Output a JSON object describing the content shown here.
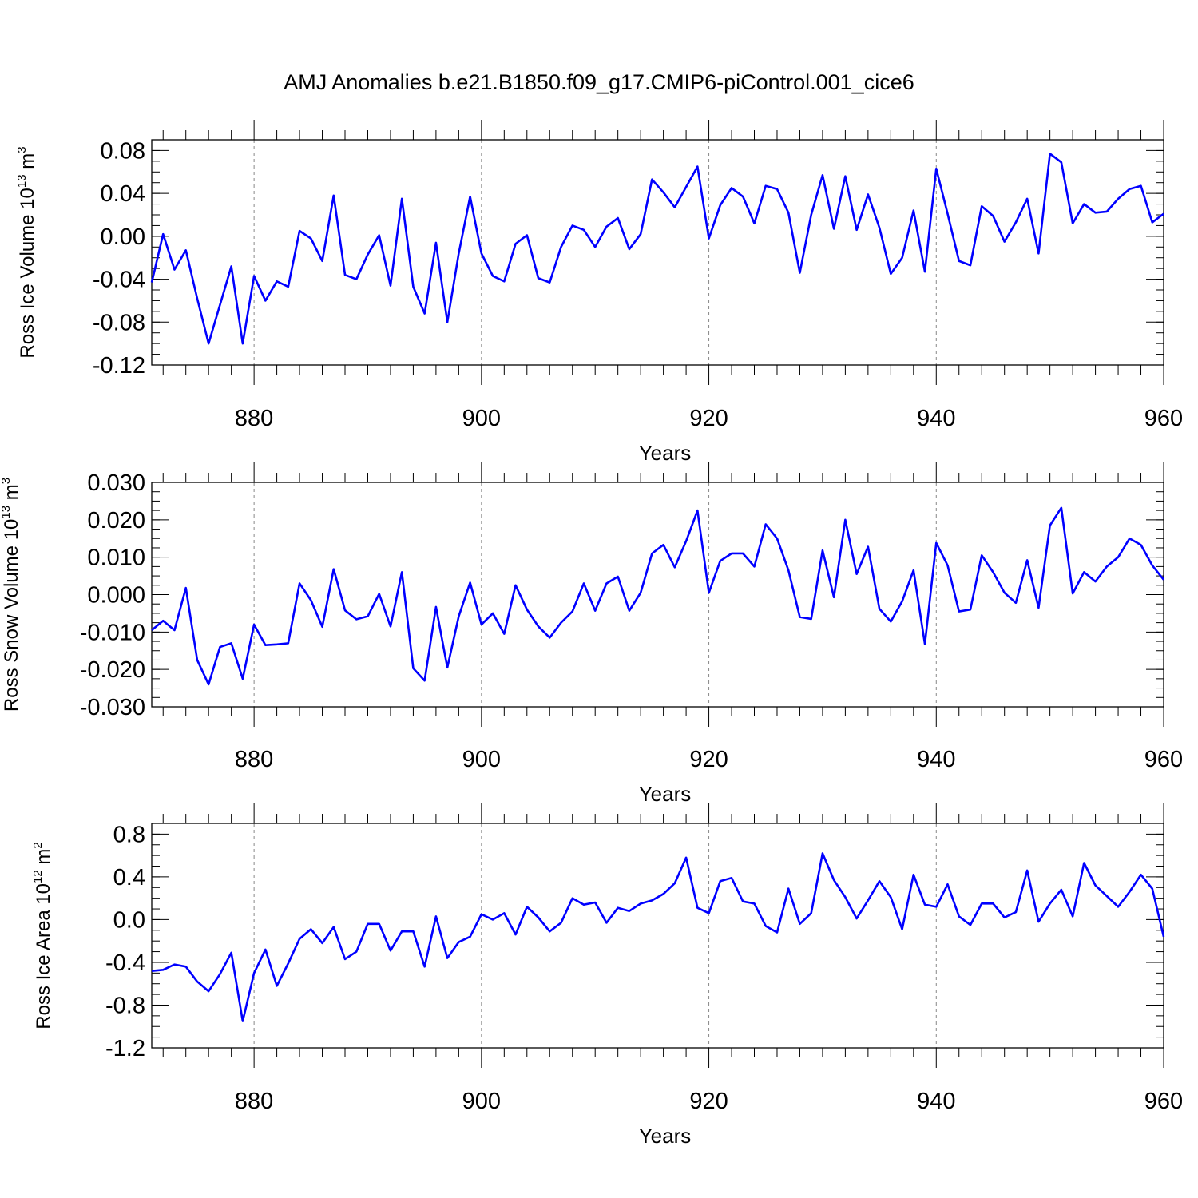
{
  "title": "AMJ Anomalies b.e21.B1850.f09_g17.CMIP6-piControl.001_cice6",
  "colors": {
    "series": "#0000ff",
    "axis": "#000000",
    "grid": "#888888"
  },
  "chart_data": [
    {
      "type": "line",
      "ylabel": {
        "base": "Ross Ice Volume 10",
        "exp": "13",
        "unit": " m",
        "unit_exp": "3"
      },
      "xlabel": "Years",
      "xlim": [
        871,
        960
      ],
      "ylim": [
        -0.12,
        0.09
      ],
      "grid": "vertical-dashed",
      "xticks": [
        880,
        900,
        920,
        940,
        960
      ],
      "xtick_labels": [
        "880",
        "900",
        "920",
        "940",
        "960"
      ],
      "yticks": [
        -0.12,
        -0.08,
        -0.04,
        0.0,
        0.04,
        0.08
      ],
      "ytick_labels": [
        "-0.12",
        "-0.08",
        "-0.04",
        "0.00",
        "0.04",
        "0.08"
      ],
      "yminor_step": 0.01,
      "x_start": 871,
      "values": [
        -0.043,
        0.002,
        -0.031,
        -0.013,
        -0.058,
        -0.1,
        -0.064,
        -0.028,
        -0.1,
        -0.037,
        -0.06,
        -0.042,
        -0.047,
        0.005,
        -0.002,
        -0.023,
        0.038,
        -0.036,
        -0.04,
        -0.017,
        0.001,
        -0.046,
        0.035,
        -0.047,
        -0.072,
        -0.006,
        -0.08,
        -0.016,
        0.037,
        -0.016,
        -0.037,
        -0.042,
        -0.007,
        0.001,
        -0.039,
        -0.043,
        -0.01,
        0.01,
        0.006,
        -0.01,
        0.009,
        0.017,
        -0.012,
        0.002,
        0.053,
        0.041,
        0.027,
        0.046,
        0.065,
        -0.002,
        0.029,
        0.045,
        0.037,
        0.012,
        0.047,
        0.044,
        0.022,
        -0.034,
        0.02,
        0.057,
        0.007,
        0.056,
        0.006,
        0.039,
        0.008,
        -0.035,
        -0.02,
        0.024,
        -0.033,
        0.063,
        0.021,
        -0.023,
        -0.027,
        0.028,
        0.019,
        -0.005,
        0.013,
        0.035,
        -0.016,
        0.077,
        0.069,
        0.012,
        0.03,
        0.022,
        0.023,
        0.035,
        0.044,
        0.047,
        0.013,
        0.021
      ]
    },
    {
      "type": "line",
      "ylabel": {
        "base": "Ross Snow Volume 10",
        "exp": "13",
        "unit": " m",
        "unit_exp": "3"
      },
      "xlabel": "Years",
      "xlim": [
        871,
        960
      ],
      "ylim": [
        -0.03,
        0.03
      ],
      "grid": "vertical-dashed",
      "xticks": [
        880,
        900,
        920,
        940,
        960
      ],
      "xtick_labels": [
        "880",
        "900",
        "920",
        "940",
        "960"
      ],
      "yticks": [
        -0.03,
        -0.02,
        -0.01,
        0.0,
        0.01,
        0.02,
        0.03
      ],
      "ytick_labels": [
        "-0.030",
        "-0.020",
        "-0.010",
        "0.000",
        "0.010",
        "0.020",
        "0.030"
      ],
      "yminor_step": 0.0025,
      "x_start": 871,
      "values": [
        -0.0095,
        -0.007,
        -0.0095,
        0.0018,
        -0.0175,
        -0.024,
        -0.014,
        -0.013,
        -0.0225,
        -0.008,
        -0.0135,
        -0.0133,
        -0.013,
        0.003,
        -0.0015,
        -0.0086,
        0.0068,
        -0.0042,
        -0.0066,
        -0.0058,
        0.0002,
        -0.0085,
        0.006,
        -0.0197,
        -0.023,
        -0.0033,
        -0.0195,
        -0.0058,
        0.0032,
        -0.008,
        -0.005,
        -0.0105,
        0.0025,
        -0.004,
        -0.0085,
        -0.0115,
        -0.0075,
        -0.0045,
        0.003,
        -0.0043,
        0.003,
        0.0048,
        -0.0043,
        0.0005,
        0.011,
        0.0133,
        0.0073,
        0.0143,
        0.0225,
        0.0005,
        0.009,
        0.011,
        0.011,
        0.0075,
        0.0188,
        0.015,
        0.0065,
        -0.006,
        -0.0065,
        0.0118,
        -0.0007,
        0.02,
        0.0055,
        0.0128,
        -0.0038,
        -0.0072,
        -0.0018,
        0.0065,
        -0.0132,
        0.0138,
        0.0078,
        -0.0045,
        -0.004,
        0.0105,
        0.006,
        0.0005,
        -0.0022,
        0.0092,
        -0.0035,
        0.0185,
        0.0232,
        0.0003,
        0.006,
        0.0035,
        0.0075,
        0.01,
        0.015,
        0.0133,
        0.0078,
        0.004
      ]
    },
    {
      "type": "line",
      "ylabel": {
        "base": "Ross Ice Area 10",
        "exp": "12",
        "unit": " m",
        "unit_exp": "2"
      },
      "xlabel": "Years",
      "xlim": [
        871,
        960
      ],
      "ylim": [
        -1.2,
        0.9
      ],
      "grid": "vertical-dashed",
      "xticks": [
        880,
        900,
        920,
        940,
        960
      ],
      "xtick_labels": [
        "880",
        "900",
        "920",
        "940",
        "960"
      ],
      "yticks": [
        -1.2,
        -0.8,
        -0.4,
        0.0,
        0.4,
        0.8
      ],
      "ytick_labels": [
        "-1.2",
        "-0.8",
        "-0.4",
        "0.0",
        "0.4",
        "0.8"
      ],
      "yminor_step": 0.1,
      "x_start": 871,
      "values": [
        -0.48,
        -0.47,
        -0.42,
        -0.44,
        -0.58,
        -0.67,
        -0.51,
        -0.31,
        -0.95,
        -0.5,
        -0.28,
        -0.62,
        -0.41,
        -0.18,
        -0.09,
        -0.22,
        -0.07,
        -0.37,
        -0.3,
        -0.04,
        -0.04,
        -0.29,
        -0.11,
        -0.11,
        -0.44,
        0.03,
        -0.36,
        -0.21,
        -0.16,
        0.05,
        0.0,
        0.06,
        -0.14,
        0.12,
        0.02,
        -0.11,
        -0.03,
        0.2,
        0.14,
        0.16,
        -0.03,
        0.11,
        0.08,
        0.15,
        0.18,
        0.24,
        0.34,
        0.58,
        0.11,
        0.06,
        0.36,
        0.39,
        0.17,
        0.15,
        -0.06,
        -0.12,
        0.29,
        -0.04,
        0.06,
        0.62,
        0.37,
        0.21,
        0.01,
        0.18,
        0.36,
        0.21,
        -0.09,
        0.42,
        0.14,
        0.12,
        0.33,
        0.03,
        -0.05,
        0.15,
        0.15,
        0.02,
        0.07,
        0.46,
        -0.02,
        0.15,
        0.28,
        0.03,
        0.53,
        0.32,
        0.22,
        0.12,
        0.26,
        0.42,
        0.29,
        -0.16
      ]
    }
  ]
}
